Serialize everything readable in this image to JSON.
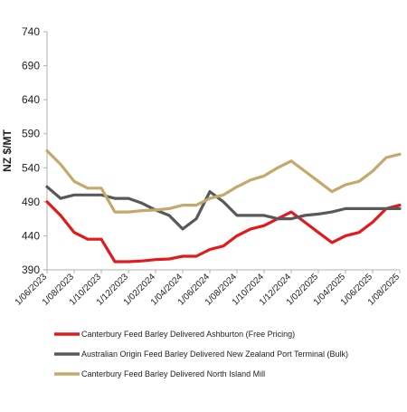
{
  "chart_data": {
    "type": "line",
    "title": "",
    "xlabel": "",
    "ylabel": "NZ $/MT",
    "ylim": [
      390,
      740
    ],
    "yticks": [
      390,
      440,
      490,
      540,
      590,
      640,
      690,
      740
    ],
    "grid": false,
    "legend_position": "bottom",
    "x_tick_labels": [
      "1/06/2023",
      "1/08/2023",
      "1/10/2023",
      "1/12/2023",
      "1/02/2024",
      "1/04/2024",
      "1/06/2024",
      "1/08/2024",
      "1/10/2024",
      "1/12/2024",
      "1/02/2025",
      "1/04/2025",
      "1/06/2025",
      "1/08/2025"
    ],
    "x": [
      "2023-06",
      "2023-07",
      "2023-08",
      "2023-09",
      "2023-10",
      "2023-11",
      "2023-12",
      "2024-01",
      "2024-02",
      "2024-03",
      "2024-04",
      "2024-05",
      "2024-06",
      "2024-07",
      "2024-08",
      "2024-09",
      "2024-10",
      "2024-11",
      "2024-12",
      "2025-01",
      "2025-02",
      "2025-03",
      "2025-04",
      "2025-05",
      "2025-06",
      "2025-07",
      "2025-08"
    ],
    "series": [
      {
        "name": "Canterbury Feed Barley Delivered Ashburton (Free Pricing)",
        "color": "#e3191c",
        "values": [
          490,
          470,
          445,
          435,
          435,
          402,
          402,
          403,
          405,
          406,
          410,
          410,
          420,
          425,
          440,
          450,
          455,
          465,
          475,
          460,
          445,
          430,
          440,
          445,
          460,
          480,
          485
        ]
      },
      {
        "name": "Australian Origin Feed Barley Delivered New Zealand Port Terminal (Bulk)",
        "color": "#595959",
        "values": [
          512,
          495,
          500,
          500,
          500,
          495,
          495,
          488,
          478,
          470,
          450,
          465,
          505,
          490,
          470,
          470,
          470,
          465,
          465,
          470,
          472,
          475,
          480,
          480,
          480,
          480,
          480
        ]
      },
      {
        "name": "Canterbury Feed Barley Delivered North Island Mill",
        "color": "#c5a86b",
        "values": [
          565,
          545,
          520,
          510,
          510,
          475,
          475,
          477,
          478,
          480,
          485,
          485,
          495,
          500,
          512,
          522,
          528,
          540,
          550,
          535,
          520,
          505,
          515,
          520,
          535,
          555,
          560
        ]
      }
    ]
  }
}
